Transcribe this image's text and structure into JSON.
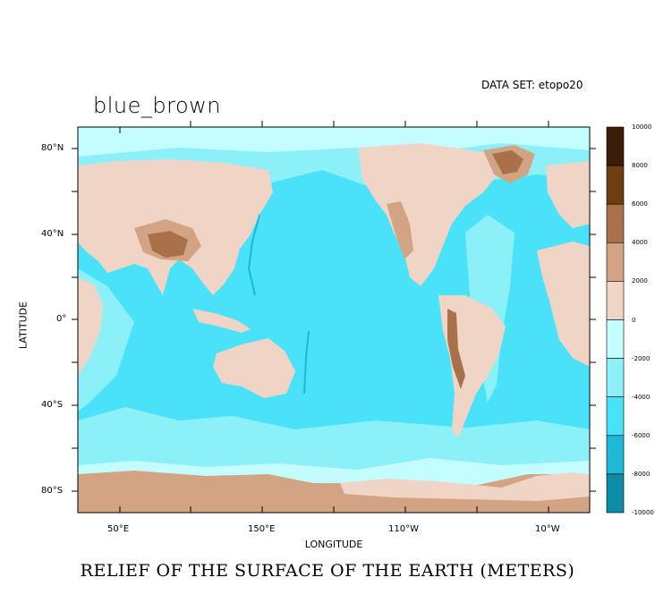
{
  "dataset_label": "DATA SET: etopo20",
  "plot_title": "blue_brown",
  "main_title": "RELIEF OF THE SURFACE OF THE EARTH (METERS)",
  "axes": {
    "xlabel": "LONGITUDE",
    "ylabel": "LATITUDE",
    "x_tick_labels": [
      "50°E",
      "150°E",
      "110°W",
      "10°W"
    ],
    "y_tick_labels": [
      "80°N",
      "40°N",
      "0°",
      "40°S",
      "80°S"
    ]
  },
  "colorbar": {
    "labels": [
      "10000",
      "8000",
      "6000",
      "4000",
      "2000",
      "0",
      "-2000",
      "-4000",
      "-6000",
      "-8000",
      "-10000"
    ],
    "colors": [
      "#3a1e08",
      "#6e3d12",
      "#a8714a",
      "#d3a484",
      "#f0d5c6",
      "#c4fdff",
      "#8cf0f8",
      "#4ae2f8",
      "#1cb8d6",
      "#0c8ca8"
    ]
  },
  "map_colors": {
    "deep_ocean": "#4ae2f8",
    "mid_ocean": "#8cf0f8",
    "shelf": "#c4fdff",
    "lowland": "#f0d5c6",
    "upland": "#d3a484",
    "highland": "#a8714a",
    "trench": "#1cb8d6"
  }
}
